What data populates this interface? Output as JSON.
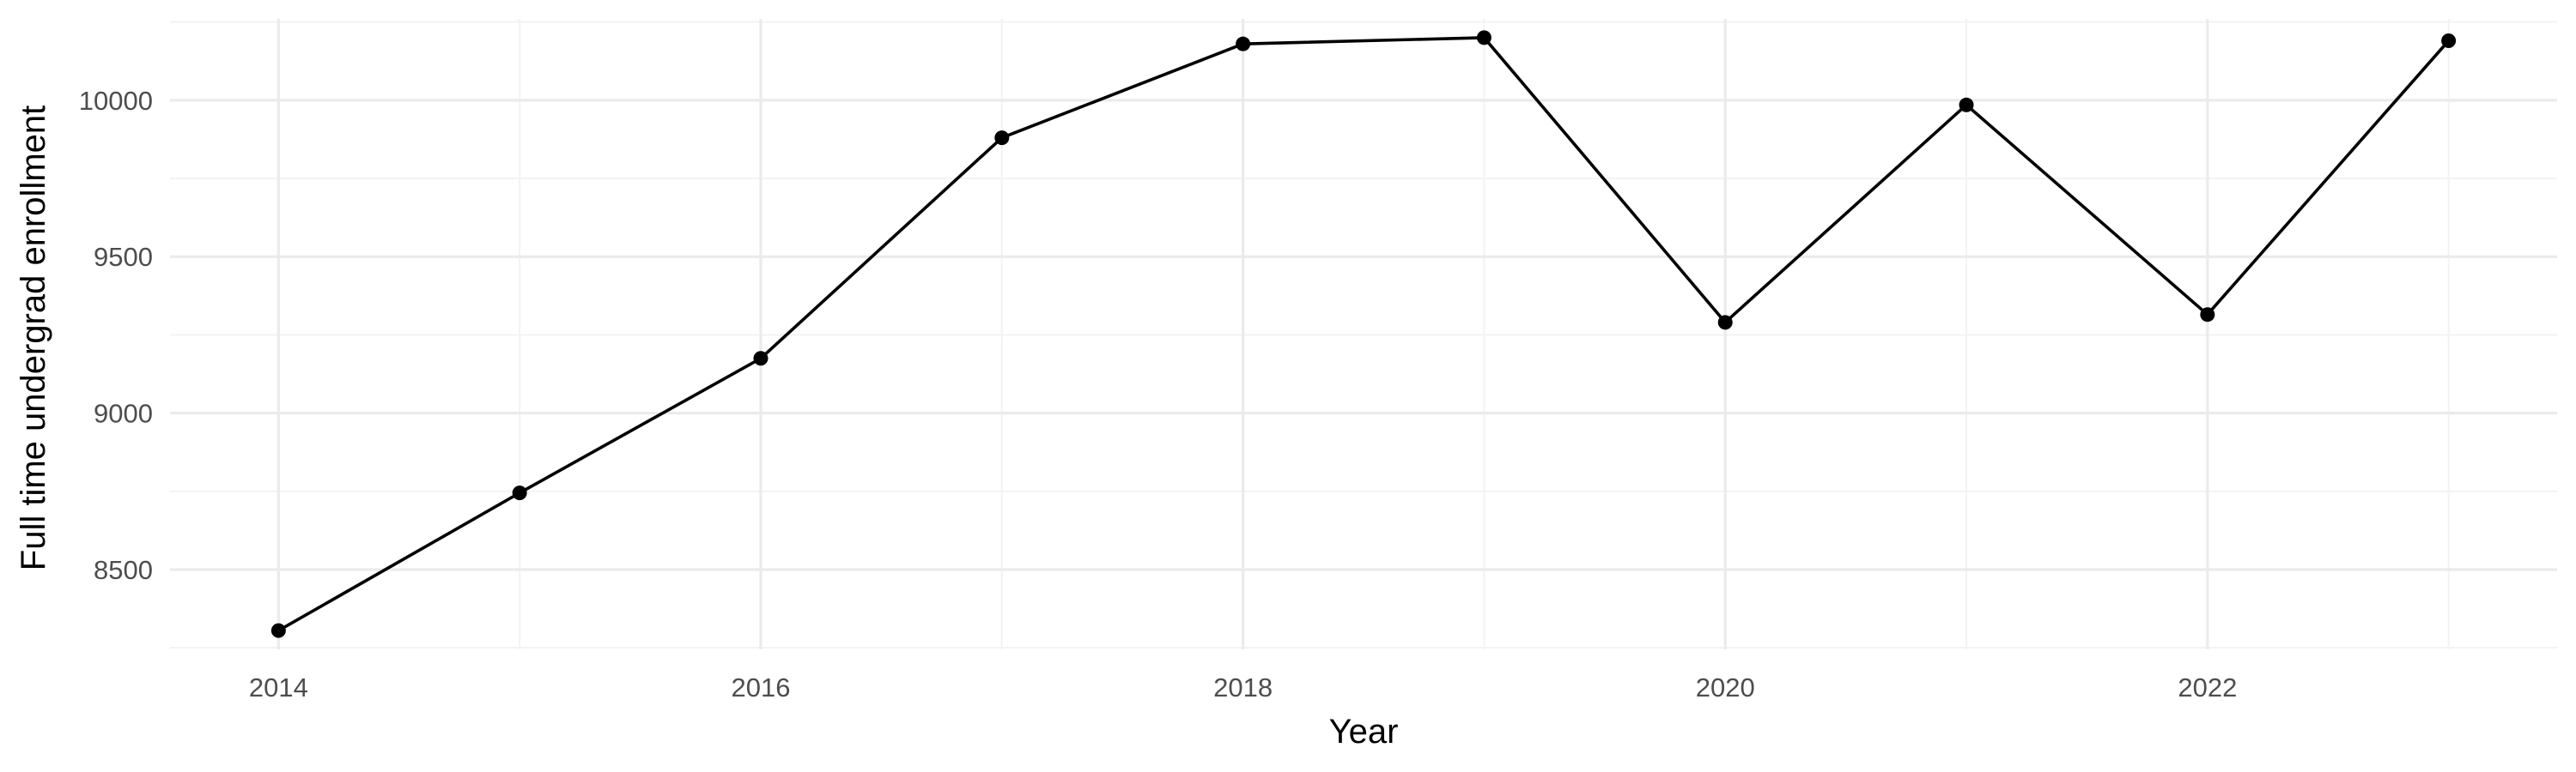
{
  "chart_data": {
    "type": "line",
    "title": "",
    "xlabel": "Year",
    "ylabel": "Full time undergrad enrollment",
    "x": [
      2014,
      2015,
      2016,
      2017,
      2018,
      2019,
      2020,
      2021,
      2022,
      2023
    ],
    "series": [
      {
        "values": [
          8305,
          8745,
          9175,
          9880,
          10180,
          10200,
          9290,
          9985,
          9315,
          10190
        ],
        "color": "#000000"
      }
    ],
    "xlim": [
      2013.55,
      2023.45
    ],
    "ylim": [
      8245,
      10260
    ],
    "x_ticks": [
      2014,
      2016,
      2018,
      2020,
      2022
    ],
    "x_tick_labels": [
      "2014",
      "2016",
      "2018",
      "2020",
      "2022"
    ],
    "x_minor_ticks": [
      2015,
      2017,
      2019,
      2021,
      2023
    ],
    "y_ticks": [
      8500,
      9000,
      9500,
      10000
    ],
    "y_tick_labels": [
      "8500",
      "9000",
      "9500",
      "10000"
    ],
    "y_minor_ticks": [
      8250,
      8750,
      9250,
      9750,
      10250
    ],
    "grid": true,
    "legend": "none",
    "show_markers": true
  }
}
